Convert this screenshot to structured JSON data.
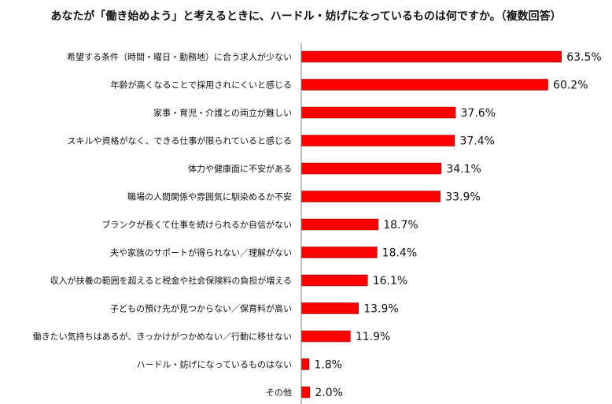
{
  "chart_data": {
    "type": "bar",
    "orientation": "horizontal",
    "title": "あなたが「働き始めよう」と考えるときに、ハードル・妨げになっているものは何ですか。（複数回答）",
    "categories": [
      "希望する条件（時間・曜日・勤務地）に合う求人が少ない",
      "年齢が高くなることで採用されにくいと感じる",
      "家事・育児・介護との両立が難しい",
      "スキルや資格がなく、できる仕事が限られていると感じる",
      "体力や健康面に不安がある",
      "職場の人間関係や雰囲気に馴染めるか不安",
      "ブランクが長くて仕事を続けられるか自信がない",
      "夫や家族のサポートが得られない／理解がない",
      "収入が扶養の範囲を超えると税金や社会保険料の負担が増える",
      "子どもの預け先が見つからない／保育料が高い",
      "働きたい気持ちはあるが、きっかけがつかめない／行動に移せない",
      "ハードル・妨げになっているものはない",
      "その他"
    ],
    "values": [
      63.5,
      60.2,
      37.6,
      37.4,
      34.1,
      33.9,
      18.7,
      18.4,
      16.1,
      13.9,
      11.9,
      1.8,
      2.0
    ],
    "value_labels": [
      "63.5%",
      "60.2%",
      "37.6%",
      "37.4%",
      "34.1%",
      "33.9%",
      "18.7%",
      "18.4%",
      "16.1%",
      "13.9%",
      "11.9%",
      "1.8%",
      "2.0%"
    ],
    "xlim": [
      0,
      100
    ],
    "bar_color": "#ff0000",
    "bar_edge_color": "#7a0000",
    "axis_color": "#7f7f7f",
    "grid": false,
    "legend": "none"
  }
}
